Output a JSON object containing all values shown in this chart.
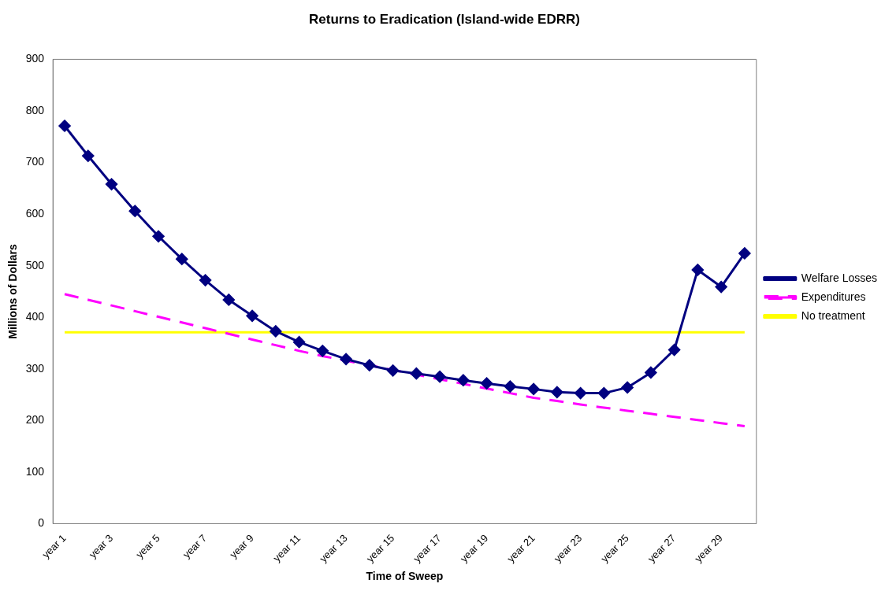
{
  "chart_data": {
    "type": "line",
    "title": "Returns to Eradication (Island-wide EDRR)",
    "xlabel": "Time of Sweep",
    "ylabel": "Millions of Dollars",
    "categories": [
      "year 1",
      null,
      "year 3",
      null,
      "year 5",
      null,
      "year 7",
      null,
      "year 9",
      null,
      "year 11",
      null,
      "year 13",
      null,
      "year 15",
      null,
      "year 17",
      null,
      "year 19",
      null,
      "year 21",
      null,
      "year 23",
      null,
      "year 25",
      null,
      "year 27",
      null,
      "year 29",
      null
    ],
    "series": [
      {
        "name": "Welfare Losses",
        "color": "#000080",
        "marker": "diamond",
        "line_style": "solid",
        "values": [
          771,
          713,
          658,
          606,
          557,
          513,
          472,
          434,
          403,
          373,
          352,
          335,
          319,
          307,
          297,
          291,
          285,
          278,
          272,
          266,
          261,
          255,
          253,
          253,
          264,
          293,
          337,
          492,
          459,
          524
        ]
      },
      {
        "name": "Expenditures",
        "color": "#ff00ff",
        "marker": "none",
        "line_style": "dashed",
        "values": [
          445,
          434,
          423,
          412,
          401,
          390,
          379,
          368,
          357,
          346,
          335,
          325,
          316,
          307,
          298,
          289,
          280,
          271,
          262,
          253,
          244,
          238,
          231,
          225,
          219,
          213,
          207,
          201,
          195,
          189
        ]
      },
      {
        "name": "No treatment",
        "color": "#ffff00",
        "marker": "none",
        "line_style": "solid",
        "values": [
          371,
          371,
          371,
          371,
          371,
          371,
          371,
          371,
          371,
          371,
          371,
          371,
          371,
          371,
          371,
          371,
          371,
          371,
          371,
          371,
          371,
          371,
          371,
          371,
          371,
          371,
          371,
          371,
          371,
          371
        ]
      }
    ],
    "ylim": [
      0,
      900
    ],
    "yticks": [
      0,
      100,
      200,
      300,
      400,
      500,
      600,
      700,
      800,
      900
    ],
    "grid": false,
    "legend": "right"
  }
}
